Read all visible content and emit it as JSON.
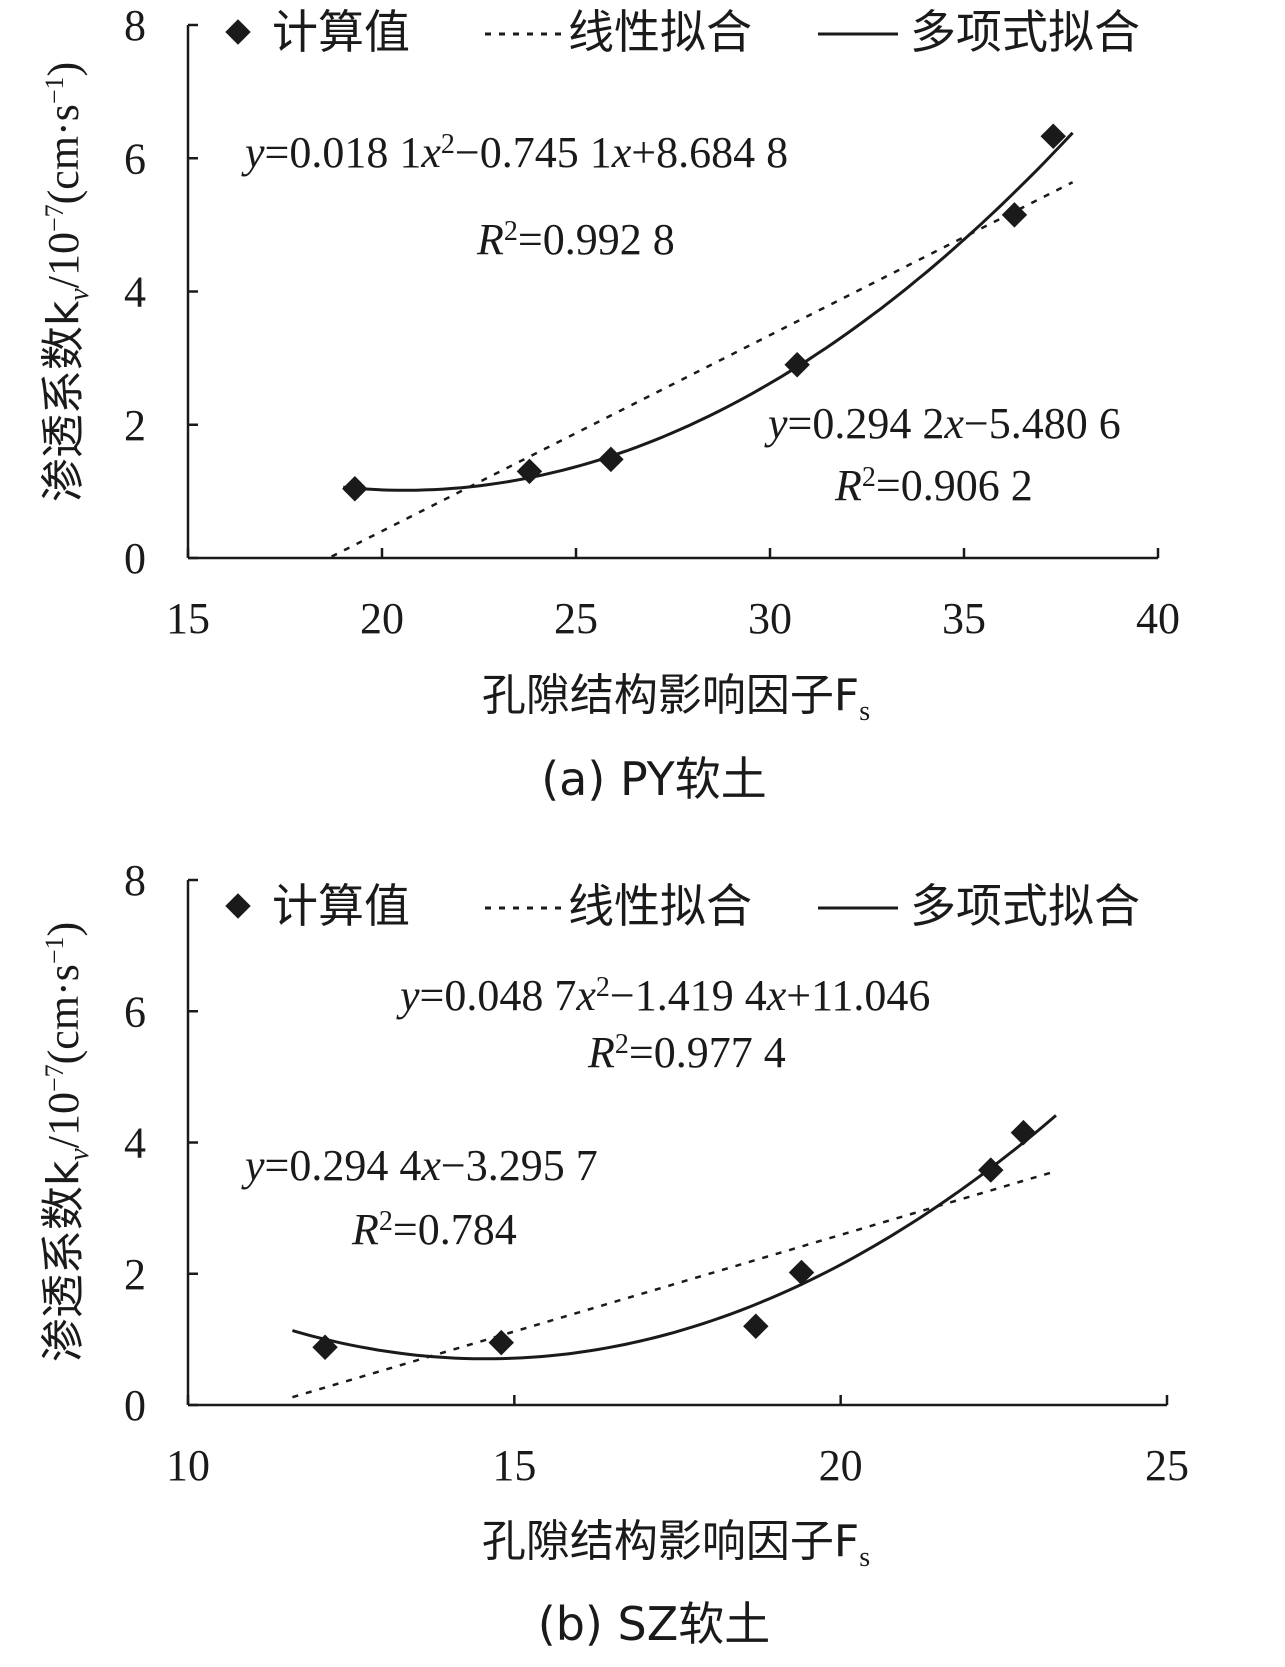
{
  "chart_data": [
    {
      "type": "scatter",
      "caption": "(a) PY软土",
      "xlabel": "孔隙结构影响因子F",
      "xlabel_sub": "s",
      "ylabel": "渗透系数k",
      "ylabel_sub": "v",
      "ylabel_units": "/10",
      "ylabel_units_sup": "−7",
      "ylabel_tail": "(cm·s",
      "ylabel_tail_sup": "−1",
      "ylabel_close": ")",
      "xlim": [
        15,
        40
      ],
      "ylim": [
        0,
        8
      ],
      "xticks": [
        15,
        20,
        25,
        30,
        35,
        40
      ],
      "yticks": [
        0,
        2,
        4,
        6,
        8
      ],
      "legend": {
        "scatter": "计算值",
        "linear": "线性拟合",
        "poly": "多项式拟合"
      },
      "points": {
        "x": [
          19.3,
          23.8,
          25.9,
          30.7,
          36.3,
          37.3
        ],
        "y": [
          1.04,
          1.3,
          1.48,
          2.9,
          5.15,
          6.33
        ]
      },
      "linear_fit": {
        "slope": 0.2942,
        "intercept": -5.4806,
        "x_range": [
          18.7,
          37.8
        ]
      },
      "poly_fit": {
        "a": 0.0181,
        "b": -0.7451,
        "c": 8.6848,
        "x_range": [
          19.0,
          37.8
        ]
      },
      "poly_eq": {
        "y": "y",
        "t1": "=0.018 1",
        "x1": "x",
        "sup": "2",
        "t2": "−0.745 1",
        "x2": "x",
        "t3": "+8.684 8"
      },
      "poly_r2": {
        "R": "R",
        "sup": "2",
        "val": "=0.992 8"
      },
      "lin_eq": {
        "y": "y",
        "t1": "=0.294 2",
        "x1": "x",
        "t2": "−5.480 6"
      },
      "lin_r2": {
        "R": "R",
        "sup": "2",
        "val": "=0.906 2"
      }
    },
    {
      "type": "scatter",
      "caption": "(b) SZ软土",
      "xlabel": "孔隙结构影响因子F",
      "xlabel_sub": "s",
      "ylabel": "渗透系数k",
      "ylabel_sub": "v",
      "ylabel_units": "/10",
      "ylabel_units_sup": "−7",
      "ylabel_tail": "(cm·s",
      "ylabel_tail_sup": "−1",
      "ylabel_close": ")",
      "xlim": [
        10,
        25
      ],
      "ylim": [
        0,
        8
      ],
      "xticks": [
        10,
        15,
        20,
        25
      ],
      "yticks": [
        0,
        2,
        4,
        6,
        8
      ],
      "legend": {
        "scatter": "计算值",
        "linear": "线性拟合",
        "poly": "多项式拟合"
      },
      "points": {
        "x": [
          12.1,
          14.8,
          18.7,
          19.4,
          22.3,
          22.8
        ],
        "y": [
          0.88,
          0.95,
          1.2,
          2.02,
          3.58,
          4.15
        ]
      },
      "linear_fit": {
        "slope": 0.2944,
        "intercept": -3.2957,
        "x_range": [
          11.6,
          23.3
        ]
      },
      "poly_fit": {
        "a": 0.0487,
        "b": -1.4194,
        "c": 11.046,
        "x_range": [
          11.6,
          23.3
        ]
      },
      "poly_eq": {
        "y": "y",
        "t1": "=0.048 7",
        "x1": "x",
        "sup": "2",
        "t2": "−1.419 4",
        "x2": "x",
        "t3": "+11.046"
      },
      "poly_r2": {
        "R": "R",
        "sup": "2",
        "val": "=0.977 4"
      },
      "lin_eq": {
        "y": "y",
        "t1": "=0.294 4",
        "x1": "x",
        "t2": "−3.295 7"
      },
      "lin_r2": {
        "R": "R",
        "sup": "2",
        "val": "=0.784"
      }
    }
  ]
}
